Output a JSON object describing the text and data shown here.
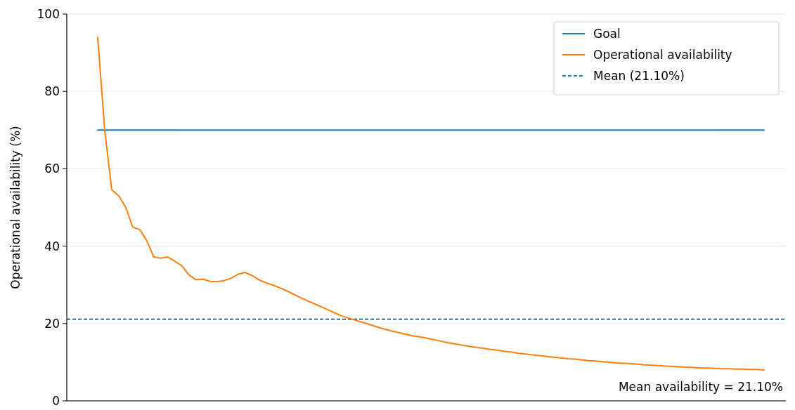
{
  "chart_data": {
    "type": "line",
    "ylabel": "Operational availability (%)",
    "categories": [
      null,
      null,
      null,
      null,
      null,
      null,
      null,
      null,
      null,
      null,
      null,
      null,
      null,
      null,
      null,
      null,
      null,
      null,
      null,
      null,
      null,
      null,
      null,
      null,
      null,
      null,
      null,
      null,
      null,
      null,
      null,
      null,
      null,
      null,
      null,
      null,
      null,
      null,
      null,
      null,
      null,
      null,
      null,
      null,
      null,
      null,
      null,
      null,
      null,
      null,
      null,
      null,
      null,
      null,
      null,
      null,
      null,
      null,
      null,
      null,
      null,
      null,
      null,
      null,
      null,
      null,
      null,
      null,
      null,
      null,
      null,
      null,
      null,
      null,
      null,
      null,
      null,
      null,
      null,
      null,
      null,
      null,
      null,
      null,
      null,
      null,
      null,
      null,
      null,
      null,
      null,
      null,
      null,
      null,
      null,
      null
    ],
    "tick_labels": "y",
    "ylim": [
      0,
      100
    ],
    "yticks": [
      0,
      20,
      40,
      60,
      80,
      100
    ],
    "grid": true,
    "legend": "top right",
    "line_style": "solid",
    "marker": "none",
    "series": [
      {
        "name": "Goal",
        "color": "#1f77b4",
        "values": [
          70,
          70,
          70,
          70,
          70,
          70,
          70,
          70,
          70,
          70,
          70,
          70,
          70,
          70,
          70,
          70,
          70,
          70,
          70,
          70,
          70,
          70,
          70,
          70,
          70,
          70,
          70,
          70,
          70,
          70,
          70,
          70,
          70,
          70,
          70,
          70,
          70,
          70,
          70,
          70,
          70,
          70,
          70,
          70,
          70,
          70,
          70,
          70,
          70,
          70,
          70,
          70,
          70,
          70,
          70,
          70,
          70,
          70,
          70,
          70,
          70,
          70,
          70,
          70,
          70,
          70,
          70,
          70,
          70,
          70,
          70,
          70,
          70,
          70,
          70,
          70,
          70,
          70,
          70,
          70,
          70,
          70,
          70,
          70,
          70,
          70,
          70,
          70,
          70,
          70,
          70,
          70,
          70,
          70,
          70,
          70
        ]
      },
      {
        "name": "Operational availability",
        "color": "#ff7f0e",
        "values": [
          94,
          70,
          54.6,
          53,
          50,
          44.9,
          44.3,
          41.4,
          37.2,
          36.9,
          37.2,
          36.1,
          34.9,
          32.6,
          31.3,
          31.5,
          30.9,
          30.8,
          31.1,
          31.7,
          32.7,
          33.2,
          32.4,
          31.3,
          30.5,
          29.9,
          29.2,
          28.4,
          27.5,
          26.6,
          25.8,
          25,
          24.2,
          23.4,
          22.6,
          21.8,
          21.3,
          20.7,
          20.2,
          19.6,
          19,
          18.5,
          18,
          17.6,
          17.2,
          16.8,
          16.5,
          16.2,
          15.8,
          15.4,
          15,
          14.7,
          14.4,
          14.1,
          13.8,
          13.6,
          13.3,
          13.1,
          12.8,
          12.6,
          12.3,
          12.1,
          11.9,
          11.7,
          11.5,
          11.3,
          11.1,
          10.9,
          10.8,
          10.6,
          10.4,
          10.3,
          10.1,
          10,
          9.8,
          9.7,
          9.6,
          9.5,
          9.3,
          9.2,
          9.1,
          9,
          8.9,
          8.8,
          8.7,
          8.6,
          8.5,
          8.5,
          8.4,
          8.3,
          8.3,
          8.2,
          8.2,
          8.1,
          8.1,
          8
        ]
      }
    ],
    "ref_lines": [
      {
        "axis": "y",
        "value": 21.1,
        "label": "Mean (21.10%)",
        "color": "#1f77b4",
        "line_style": "dashed"
      }
    ],
    "annotations": [
      "Mean availability = 21.10%"
    ]
  }
}
